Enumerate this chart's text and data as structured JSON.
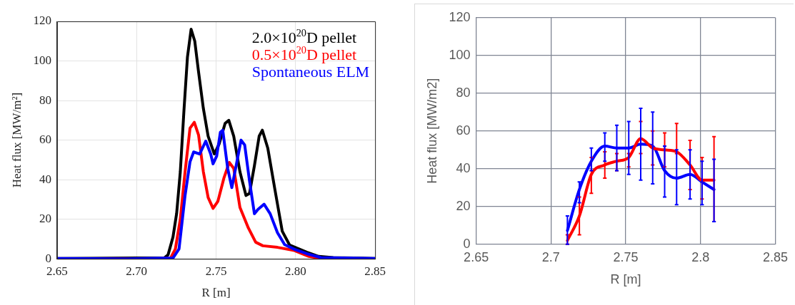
{
  "chart_data": [
    {
      "type": "line",
      "xlabel": "R [m]",
      "ylabel": "Heat flux [MW/m²]",
      "xlim": [
        2.65,
        2.85
      ],
      "ylim": [
        0,
        120
      ],
      "xticks": [
        2.65,
        {
          "value": 2.7,
          "label": "2.70"
        },
        2.75,
        {
          "value": 2.8,
          "label": "2.80"
        },
        2.85
      ],
      "yticks": [
        0,
        20,
        40,
        60,
        80,
        100,
        120
      ],
      "grid": true,
      "legend": "top right",
      "marker": "none",
      "line_style": "solid",
      "series": [
        {
          "name": "Spontaneous ELM",
          "color": "#0000ff",
          "x": [
            2.65,
            2.6938,
            2.7229,
            2.7267,
            2.7305,
            2.7336,
            2.7359,
            2.7397,
            2.7435,
            2.7466,
            2.7481,
            2.7504,
            2.7527,
            2.7542,
            2.7573,
            2.7599,
            2.7626,
            2.7657,
            2.768,
            2.771,
            2.7741,
            2.7764,
            2.7802,
            2.784,
            2.7886,
            2.7931,
            2.7993,
            2.807,
            2.816,
            2.85
          ],
          "values": [
            0.2,
            0,
            0.4,
            5,
            32,
            49,
            54,
            53,
            59.5,
            53,
            48,
            52,
            64,
            65,
            45.7,
            36,
            47,
            60,
            57.5,
            39.5,
            22.8,
            25,
            27.6,
            22.8,
            13.2,
            7.2,
            4.8,
            2.6,
            0.6,
            0.2
          ]
        },
        {
          "name": "0.5×10$^{20}$D pellet",
          "color": "#ff0000",
          "x": [
            2.65,
            2.71,
            2.7213,
            2.7244,
            2.7275,
            2.7305,
            2.7336,
            2.7363,
            2.739,
            2.742,
            2.745,
            2.7481,
            2.7511,
            2.755,
            2.7583,
            2.7611,
            2.765,
            2.7703,
            2.7749,
            2.7794,
            2.7886,
            2.7993,
            2.8084,
            2.816,
            2.85
          ],
          "values": [
            0,
            0,
            0.3,
            5,
            20,
            44,
            66,
            69,
            62.5,
            44,
            31,
            25.5,
            29,
            41,
            48.7,
            45.7,
            26,
            15.6,
            8.4,
            6.6,
            5.8,
            4.2,
            1.2,
            0.2,
            0
          ]
        },
        {
          "name": "2.0×10$^{20}$D pellet",
          "color": "#000000",
          "x": [
            2.65,
            2.7175,
            2.7198,
            2.7229,
            2.7252,
            2.7275,
            2.7298,
            2.732,
            2.7343,
            2.7366,
            2.7389,
            2.742,
            2.745,
            2.7489,
            2.7519,
            2.7557,
            2.758,
            2.7611,
            2.765,
            2.7688,
            2.771,
            2.7741,
            2.7771,
            2.7791,
            2.7825,
            2.787,
            2.7916,
            2.7962,
            2.8008,
            2.807,
            2.8145,
            2.8237,
            2.85
          ],
          "values": [
            0.2,
            0.5,
            2,
            11,
            23,
            44,
            75,
            102,
            116,
            110,
            95,
            76,
            62,
            53,
            58,
            68.5,
            70,
            62,
            44,
            32,
            33,
            47,
            62,
            65,
            56,
            35,
            14,
            7,
            5.4,
            3.4,
            1.2,
            0.6,
            0.2
          ]
        }
      ]
    },
    {
      "type": "line",
      "xlabel": "R [m]",
      "ylabel": "Heat flux [MW/m2]",
      "xlim": [
        2.65,
        2.85
      ],
      "ylim": [
        0,
        120
      ],
      "xticks": [
        2.65,
        2.7,
        2.75,
        2.8,
        2.85
      ],
      "yticks": [
        0,
        20,
        40,
        60,
        80,
        100,
        120
      ],
      "grid": true,
      "marker": "none",
      "line_style": "solid",
      "x": [
        2.711,
        2.719,
        2.727,
        2.736,
        2.744,
        2.752,
        2.76,
        2.768,
        2.776,
        2.784,
        2.793,
        2.801,
        2.809
      ],
      "series": [
        {
          "color": "#ff0000",
          "values": [
            2,
            15,
            37,
            42,
            44,
            46,
            56,
            51,
            50,
            49,
            42,
            34,
            34
          ],
          "errors": [
            [
              0,
              5
            ],
            [
              5,
              25
            ],
            [
              27,
              46
            ],
            [
              35,
              49
            ],
            [
              39,
              48
            ],
            [
              41,
              48
            ],
            [
              48,
              65
            ],
            [
              42,
              60
            ],
            [
              41,
              59
            ],
            [
              48,
              64
            ],
            [
              29,
              55
            ],
            [
              24,
              46
            ],
            [
              12,
              57
            ]
          ]
        },
        {
          "color": "#0000ff",
          "values": [
            7.3,
            29,
            44,
            52,
            51,
            51,
            53,
            52,
            39,
            35,
            37,
            33,
            29
          ],
          "errors": [
            [
              0,
              15
            ],
            [
              22,
              33
            ],
            [
              39,
              51
            ],
            [
              44,
              59
            ],
            [
              39,
              63
            ],
            [
              37,
              65
            ],
            [
              34,
              72
            ],
            [
              32,
              70
            ],
            [
              25,
              52
            ],
            [
              21,
              50
            ],
            [
              24,
              50
            ],
            [
              21,
              44
            ],
            [
              12,
              45
            ]
          ]
        }
      ]
    }
  ]
}
